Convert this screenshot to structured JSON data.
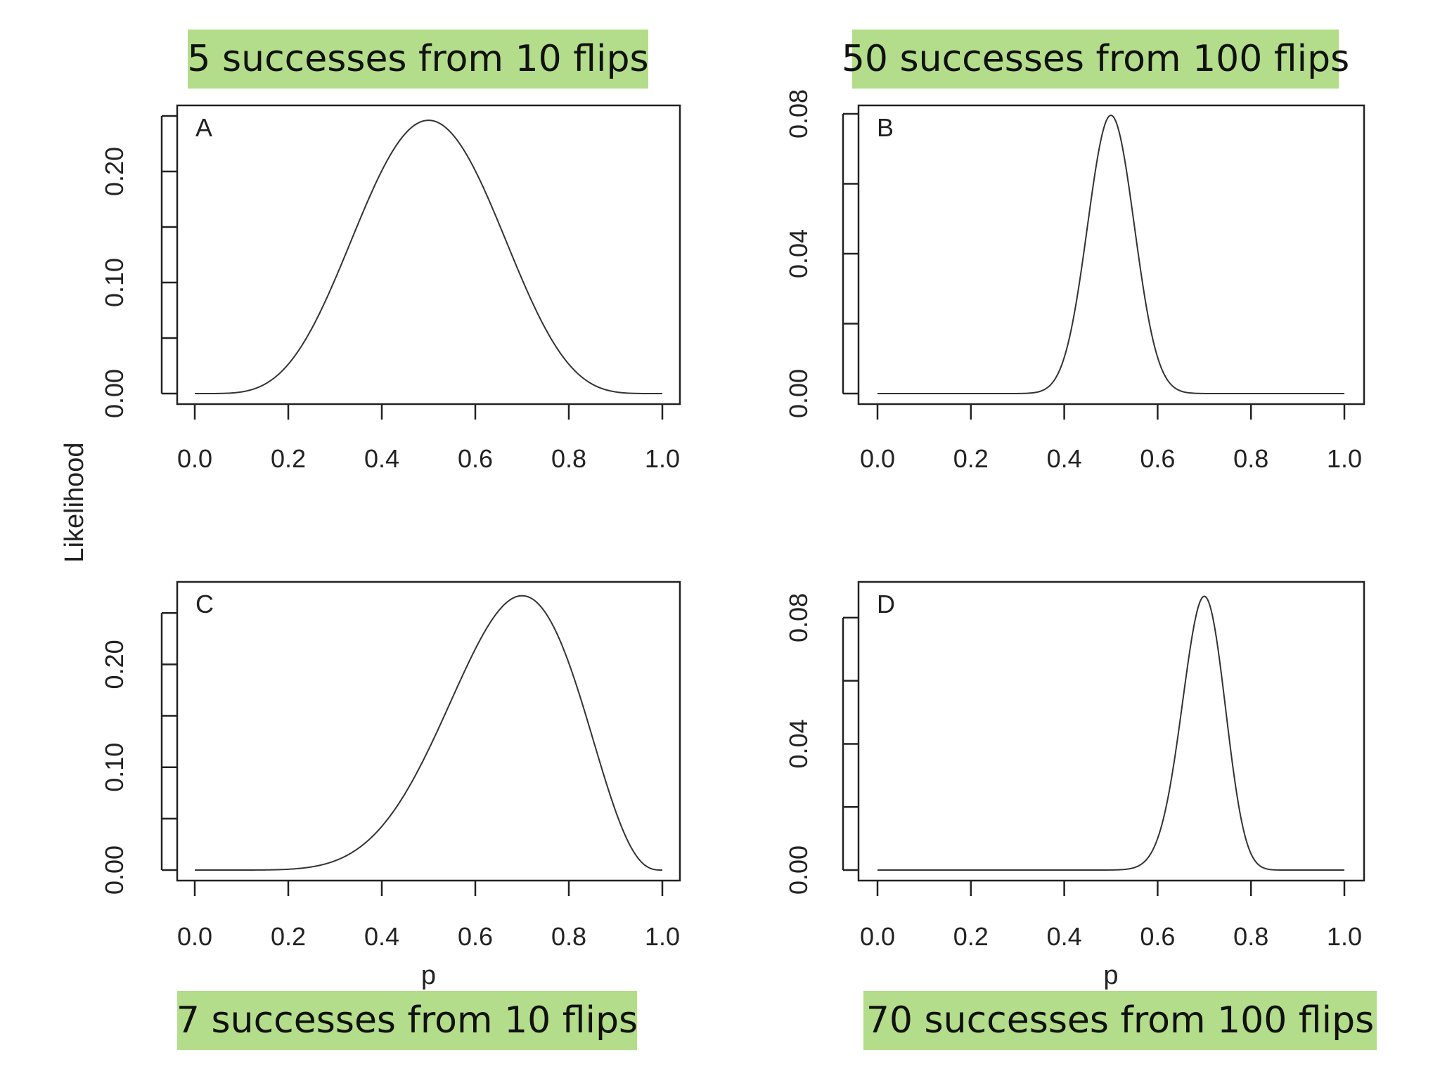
{
  "figure": {
    "ylabel": "Likelihood",
    "xlabel": "p"
  },
  "captions": {
    "a": "5 successes from 10 flips",
    "b": "50 successes from 100 flips",
    "c": "7 successes from 10 flips",
    "d": "70 successes from 100 flips"
  },
  "chart_data": [
    {
      "type": "line",
      "panel_label": "A",
      "title": "5 successes from 10 flips",
      "n": 10,
      "k": 5,
      "xlabel": "",
      "ylabel": "",
      "xlim": [
        0.0,
        1.0
      ],
      "ylim": [
        0.0,
        0.25
      ],
      "xticks": [
        "0.0",
        "0.2",
        "0.4",
        "0.6",
        "0.8",
        "1.0"
      ],
      "yticks": [
        "0.00",
        "0.10",
        "0.20"
      ],
      "series": [
        {
          "x": [
            0.0,
            0.1,
            0.2,
            0.3,
            0.4,
            0.5,
            0.6,
            0.7,
            0.8,
            0.9,
            1.0
          ],
          "y": [
            0.0,
            0.0015,
            0.0264,
            0.1029,
            0.2007,
            0.2461,
            0.2007,
            0.1029,
            0.0264,
            0.0015,
            0.0
          ]
        }
      ]
    },
    {
      "type": "line",
      "panel_label": "B",
      "title": "50 successes from 100 flips",
      "n": 100,
      "k": 50,
      "xlabel": "",
      "ylabel": "",
      "xlim": [
        0.0,
        1.0
      ],
      "ylim": [
        0.0,
        0.08
      ],
      "xticks": [
        "0.0",
        "0.2",
        "0.4",
        "0.6",
        "0.8",
        "1.0"
      ],
      "yticks": [
        "0.00",
        "0.04",
        "0.08"
      ],
      "series": [
        {
          "x": [
            0.0,
            0.3,
            0.35,
            0.4,
            0.45,
            0.5,
            0.55,
            0.6,
            0.65,
            0.7,
            1.0
          ],
          "y": [
            0.0,
            0.0,
            0.0009,
            0.0103,
            0.0482,
            0.0796,
            0.0482,
            0.0103,
            0.0009,
            0.0,
            0.0
          ]
        }
      ]
    },
    {
      "type": "line",
      "panel_label": "C",
      "title": "7 successes from 10 flips",
      "n": 10,
      "k": 7,
      "xlabel": "p",
      "ylabel": "",
      "xlim": [
        0.0,
        1.0
      ],
      "ylim": [
        0.0,
        0.27
      ],
      "xticks": [
        "0.0",
        "0.2",
        "0.4",
        "0.6",
        "0.8",
        "1.0"
      ],
      "yticks": [
        "0.00",
        "0.10",
        "0.20"
      ],
      "series": [
        {
          "x": [
            0.0,
            0.1,
            0.2,
            0.3,
            0.4,
            0.5,
            0.6,
            0.7,
            0.8,
            0.9,
            1.0
          ],
          "y": [
            0.0,
            0.0,
            0.0008,
            0.009,
            0.0425,
            0.1172,
            0.215,
            0.2668,
            0.2013,
            0.0574,
            0.0
          ]
        }
      ]
    },
    {
      "type": "line",
      "panel_label": "D",
      "title": "70 successes from 100 flips",
      "n": 100,
      "k": 70,
      "xlabel": "p",
      "ylabel": "",
      "xlim": [
        0.0,
        1.0
      ],
      "ylim": [
        0.0,
        0.088
      ],
      "xticks": [
        "0.0",
        "0.2",
        "0.4",
        "0.6",
        "0.8",
        "1.0"
      ],
      "yticks": [
        "0.00",
        "0.04",
        "0.08"
      ],
      "series": [
        {
          "x": [
            0.0,
            0.5,
            0.55,
            0.6,
            0.65,
            0.7,
            0.75,
            0.8,
            0.85,
            1.0
          ],
          "y": [
            0.0,
            0.0,
            0.0009,
            0.01,
            0.0474,
            0.0868,
            0.0468,
            0.0052,
            0.0001,
            0.0
          ]
        }
      ]
    }
  ]
}
